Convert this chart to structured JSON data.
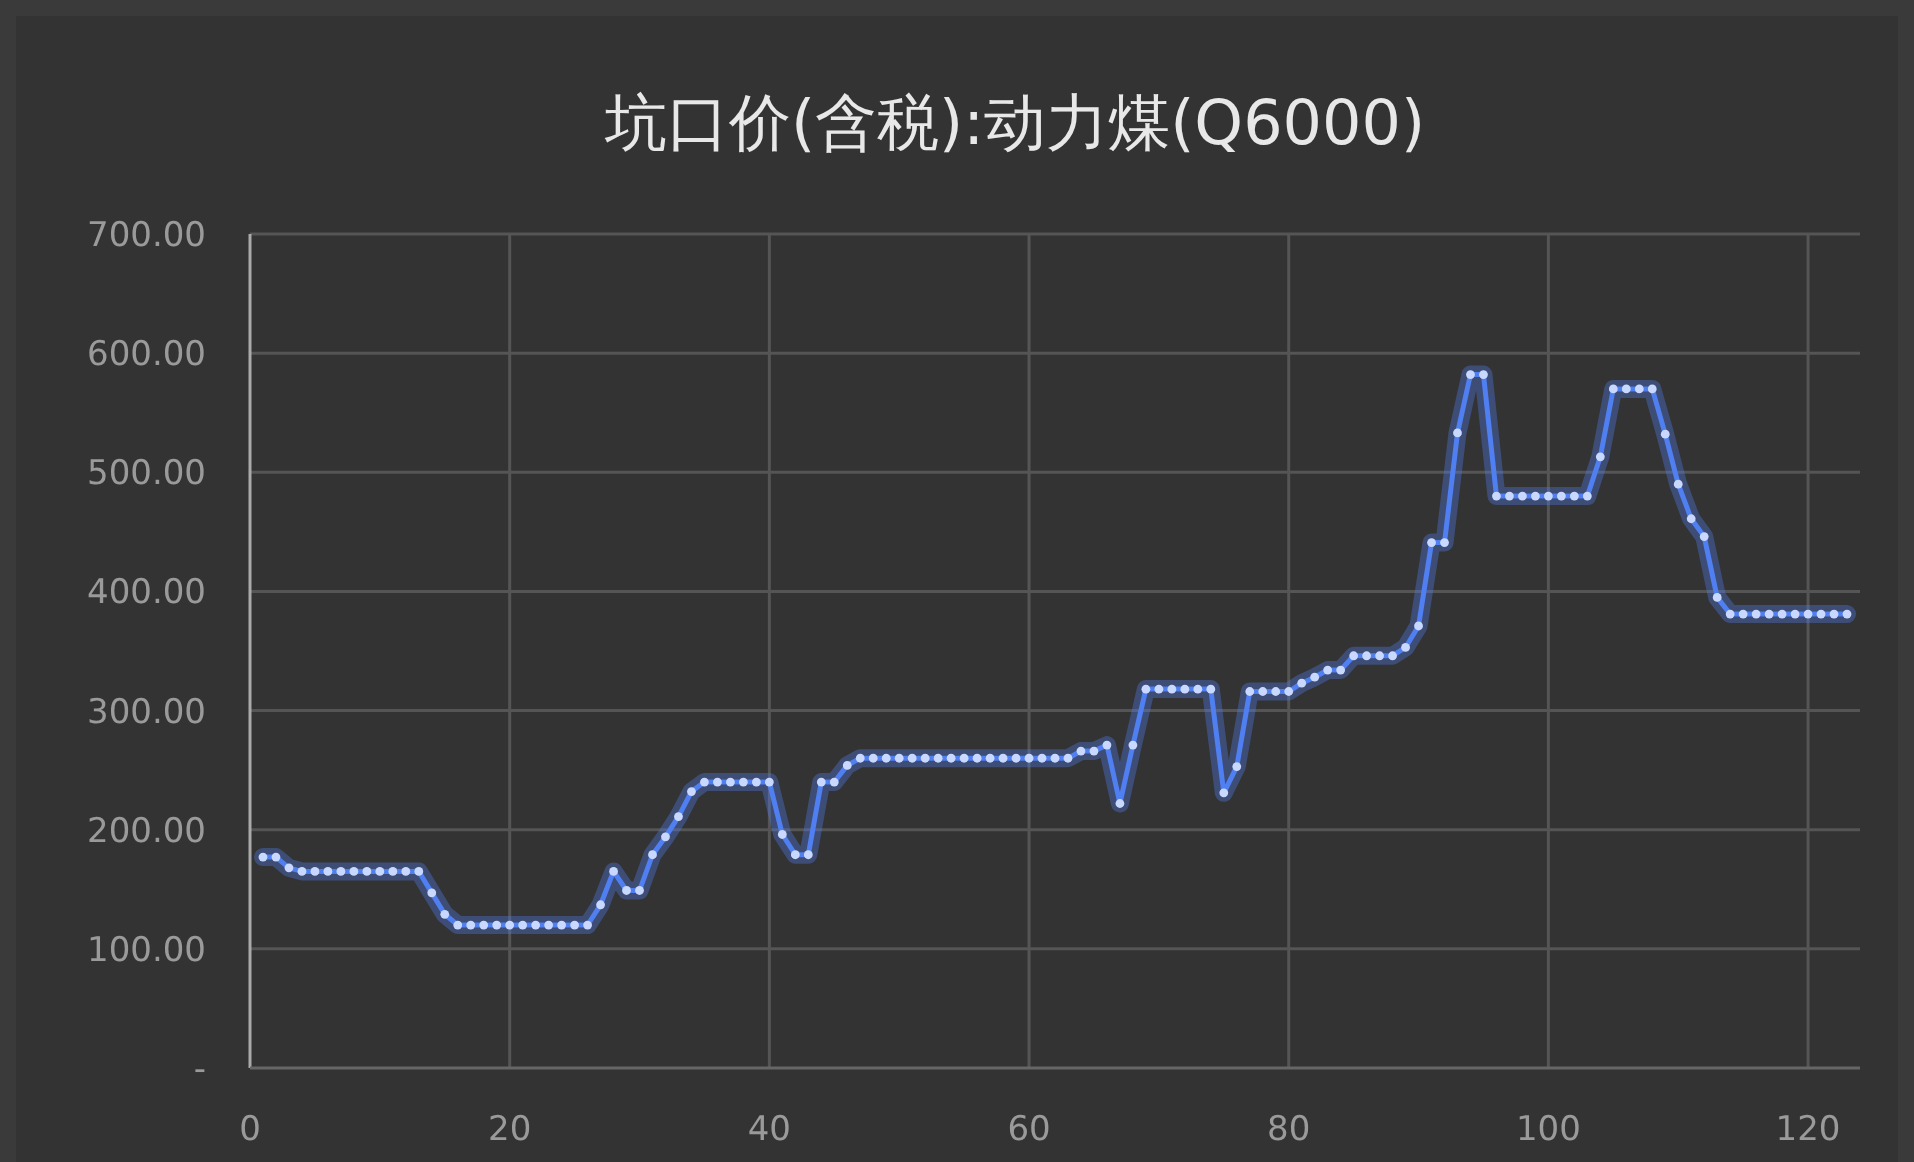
{
  "chart_data": {
    "type": "line",
    "title": "坑口价(含税):动力煤(Q6000)",
    "x": [
      1,
      2,
      3,
      4,
      5,
      6,
      7,
      8,
      9,
      10,
      11,
      12,
      13,
      14,
      15,
      16,
      17,
      18,
      19,
      20,
      21,
      22,
      23,
      24,
      25,
      26,
      27,
      28,
      29,
      30,
      31,
      32,
      33,
      34,
      35,
      36,
      37,
      38,
      39,
      40,
      41,
      42,
      43,
      44,
      45,
      46,
      47,
      48,
      49,
      50,
      51,
      52,
      53,
      54,
      55,
      56,
      57,
      58,
      59,
      60,
      61,
      62,
      63,
      64,
      65,
      66,
      67,
      68,
      69,
      70,
      71,
      72,
      73,
      74,
      75,
      76,
      77,
      78,
      79,
      80,
      81,
      82,
      83,
      84,
      85,
      86,
      87,
      88,
      89,
      90,
      91,
      92,
      93,
      94,
      95,
      96,
      97,
      98,
      99,
      100,
      101,
      102,
      103,
      104,
      105,
      106,
      107,
      108,
      109,
      110,
      111,
      112,
      113,
      114,
      115,
      116,
      117,
      118,
      119,
      120,
      121,
      122,
      123
    ],
    "series": [
      {
        "color": "#4f7ff0",
        "values": [
          177,
          177,
          168,
          165,
          165,
          165,
          165,
          165,
          165,
          165,
          165,
          165,
          165,
          147,
          129,
          120,
          120,
          120,
          120,
          120,
          120,
          120,
          120,
          120,
          120,
          120,
          137,
          165,
          149,
          149,
          179,
          194,
          211,
          232,
          240,
          240,
          240,
          240,
          240,
          240,
          196,
          179,
          179,
          240,
          240,
          254,
          260,
          260,
          260,
          260,
          260,
          260,
          260,
          260,
          260,
          260,
          260,
          260,
          260,
          260,
          260,
          260,
          260,
          266,
          266,
          271,
          222,
          271,
          318,
          318,
          318,
          318,
          318,
          318,
          231,
          253,
          316,
          316,
          316,
          316,
          323,
          328,
          334,
          334,
          346,
          346,
          346,
          346,
          353,
          371,
          441,
          441,
          533,
          582,
          582,
          480,
          480,
          480,
          480,
          480,
          480,
          480,
          480,
          513,
          570,
          570,
          570,
          570,
          532,
          490,
          461,
          446,
          395,
          381,
          381,
          381,
          381,
          381,
          381,
          381,
          381,
          381,
          381
        ]
      }
    ],
    "xlim": [
      0,
      124
    ],
    "ylim": [
      0,
      700
    ],
    "xticks": [
      0,
      20,
      40,
      60,
      80,
      100,
      120
    ],
    "yticks": [
      {
        "value": 0,
        "label": "-"
      },
      {
        "value": 100,
        "label": "100.00"
      },
      {
        "value": 200,
        "label": "200.00"
      },
      {
        "value": 300,
        "label": "300.00"
      },
      {
        "value": 400,
        "label": "400.00"
      },
      {
        "value": 500,
        "label": "500.00"
      },
      {
        "value": 600,
        "label": "600.00"
      },
      {
        "value": 700,
        "label": "700.00"
      }
    ],
    "grid": true,
    "marker": "circle",
    "line_style": "solid"
  }
}
